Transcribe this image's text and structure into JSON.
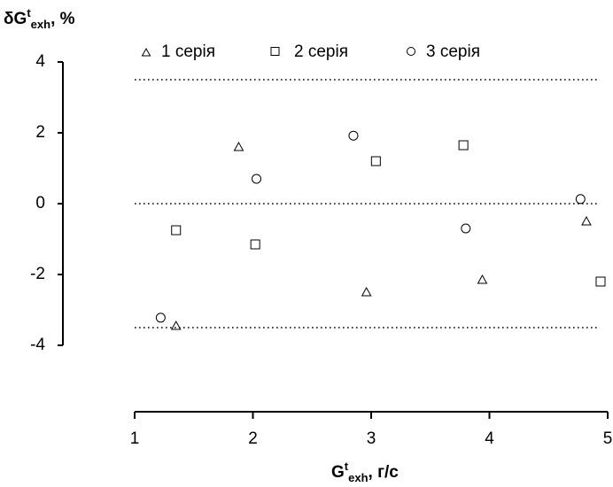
{
  "chart_data": {
    "type": "scatter",
    "xlim": [
      1,
      5
    ],
    "ylim": [
      -4,
      4
    ],
    "x_ticks": [
      "1",
      "2",
      "3",
      "4",
      "5"
    ],
    "y_ticks": [
      "4",
      "2",
      "0",
      "-2",
      "-4"
    ],
    "ylabel": {
      "base": "δG",
      "sup": "t",
      "sub": "exh",
      "suffix": ", %"
    },
    "xlabel": {
      "base": "G",
      "sup": "t",
      "sub": "exh",
      "suffix": ", г/с"
    },
    "reference_lines": [
      3.5,
      0,
      -3.5
    ],
    "legend_position": "top",
    "series": [
      {
        "name": "1 серія",
        "marker": "triangle",
        "points": [
          [
            1.35,
            -3.45
          ],
          [
            1.88,
            1.6
          ],
          [
            2.96,
            -2.5
          ],
          [
            3.94,
            -2.15
          ],
          [
            4.82,
            -0.5
          ]
        ]
      },
      {
        "name": "2 серія",
        "marker": "square",
        "points": [
          [
            1.35,
            -0.75
          ],
          [
            2.02,
            -1.15
          ],
          [
            3.04,
            1.2
          ],
          [
            3.78,
            1.65
          ],
          [
            4.94,
            -2.2
          ]
        ]
      },
      {
        "name": "3 серія",
        "marker": "circle",
        "points": [
          [
            1.22,
            -3.22
          ],
          [
            2.03,
            0.7
          ],
          [
            2.85,
            1.92
          ],
          [
            3.8,
            -0.7
          ],
          [
            4.77,
            0.13
          ]
        ]
      }
    ]
  }
}
